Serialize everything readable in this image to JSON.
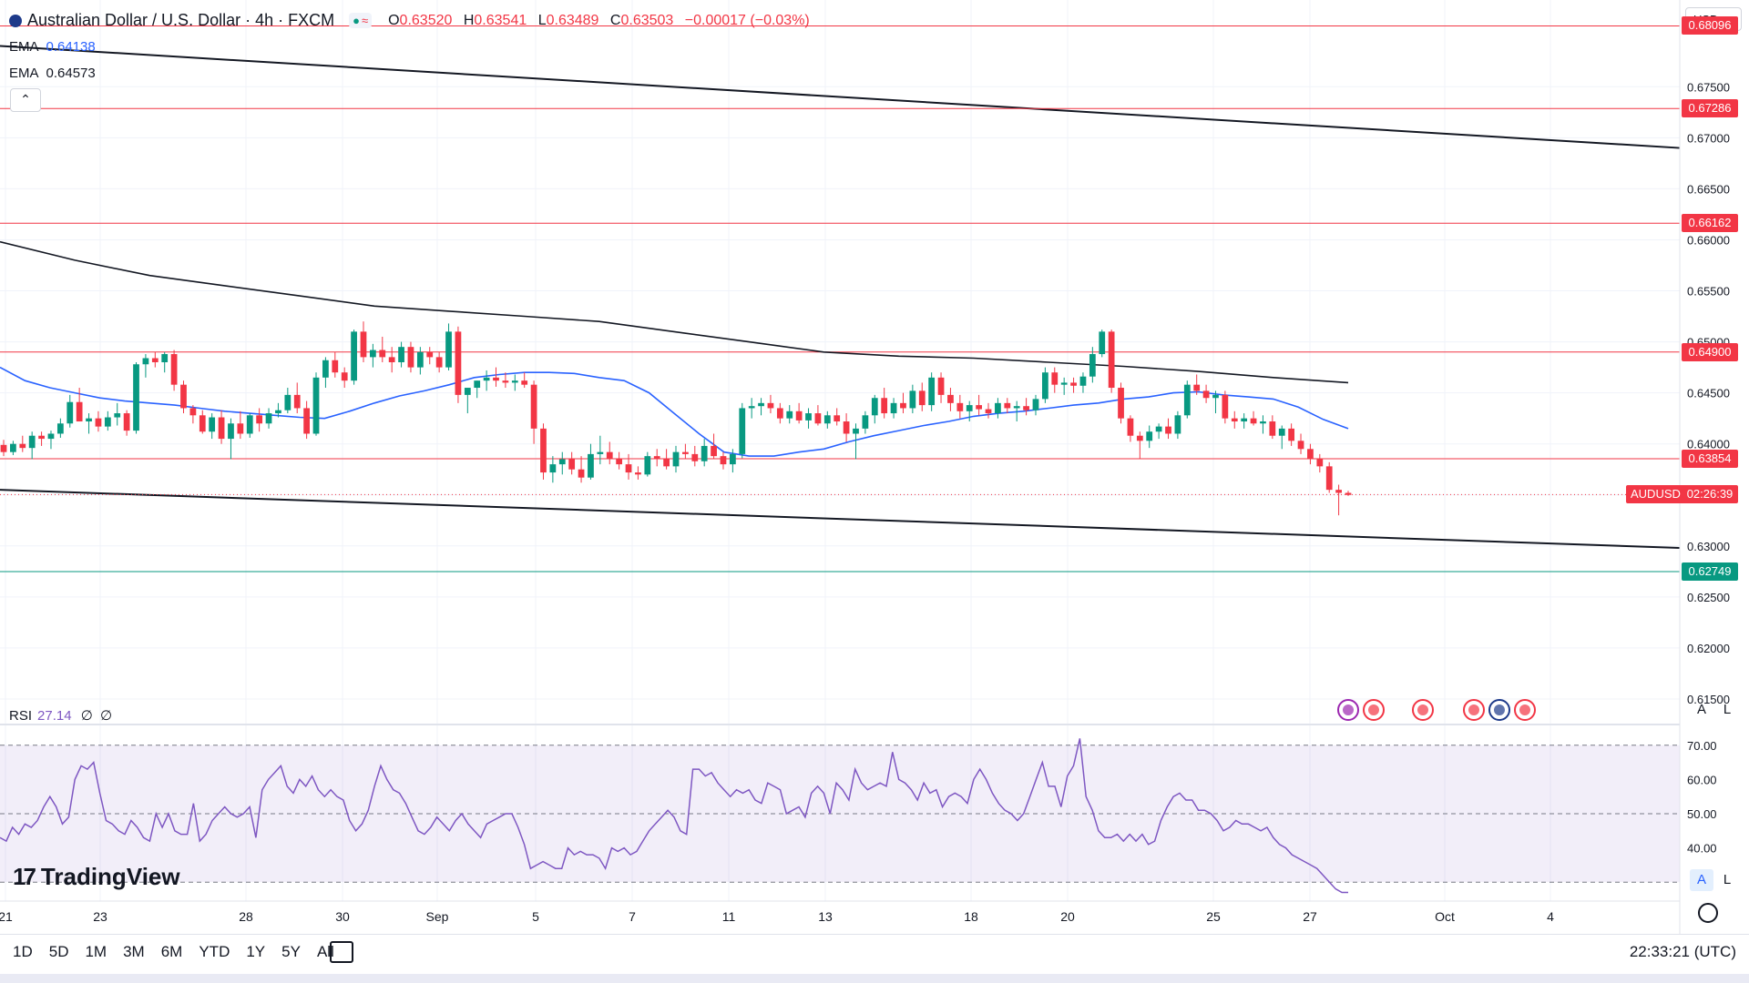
{
  "header": {
    "symbol_title": "Australian Dollar / U.S. Dollar · 4h · FXCM",
    "ohlc": {
      "o_label": "O",
      "o": "0.63520",
      "h_label": "H",
      "h": "0.63541",
      "l_label": "L",
      "l": "0.63489",
      "c_label": "C",
      "c": "0.63503",
      "change": "−0.00017 (−0.03%)"
    },
    "pill_icons": [
      "●",
      "≈"
    ],
    "collapse_icon": "⌃"
  },
  "indicators": {
    "ema1": {
      "label": "EMA",
      "value": "0.64138",
      "color": "#2962ff"
    },
    "ema2": {
      "label": "EMA",
      "value": "0.64573",
      "color": "#131722"
    }
  },
  "axis": {
    "currency": "USD",
    "currency_icon": "⌄",
    "price_ticks": [
      0.675,
      0.67,
      0.665,
      0.66,
      0.655,
      0.65,
      0.645,
      0.64,
      0.635,
      0.63,
      0.625,
      0.62,
      0.615
    ],
    "price_tick_labels": [
      "0.67500",
      "0.67000",
      "0.66500",
      "0.66000",
      "0.65500",
      "0.65000",
      "0.64500",
      "0.64000",
      "0.63500",
      "0.63000",
      "0.62500",
      "0.62000",
      "0.61500"
    ],
    "x_labels": [
      "21",
      "23",
      "28",
      "30",
      "Sep",
      "5",
      "7",
      "11",
      "13",
      "18",
      "20",
      "25",
      "27",
      "Oct",
      "4"
    ],
    "auto_label": "A",
    "log_label": "L"
  },
  "levels": [
    {
      "value": 0.68096,
      "label": "0.68096",
      "color": "#f23645"
    },
    {
      "value": 0.67286,
      "label": "0.67286",
      "color": "#f23645"
    },
    {
      "value": 0.66162,
      "label": "0.66162",
      "color": "#f23645"
    },
    {
      "value": 0.649,
      "label": "0.64900",
      "color": "#f23645"
    },
    {
      "value": 0.63854,
      "label": "0.63854",
      "color": "#f23645"
    },
    {
      "value": 0.62749,
      "label": "0.62749",
      "color": "#089981"
    }
  ],
  "current": {
    "symbol": "AUDUSD",
    "countdown": "02:26:39",
    "value": 0.63503,
    "color": "#f23645"
  },
  "rsi": {
    "label": "RSI",
    "value": "27.14",
    "extra1": "∅",
    "extra2": "∅",
    "ticks": [
      70,
      60,
      50,
      40
    ],
    "tick_labels": [
      "70.00",
      "60.00",
      "50.00",
      "40.00"
    ],
    "upper": 70,
    "lower": 30,
    "color": "#7e57c2"
  },
  "branding": {
    "logo_mark": "17",
    "logo_text": "TradingView"
  },
  "bottom": {
    "ranges": [
      "1D",
      "5D",
      "1M",
      "3M",
      "6M",
      "YTD",
      "1Y",
      "5Y",
      "All"
    ],
    "clock": "22:33:21 (UTC)"
  },
  "chart_data": {
    "type": "candlestick",
    "instrument": "AUDUSD",
    "timeframe": "4h",
    "ylim": [
      0.6125,
      0.6835
    ],
    "candles_ohlc": [
      [
        0.6399,
        0.6404,
        0.6388,
        0.6392
      ],
      [
        0.6392,
        0.6403,
        0.6389,
        0.64
      ],
      [
        0.64,
        0.6408,
        0.6392,
        0.6396
      ],
      [
        0.6396,
        0.6412,
        0.6385,
        0.6408
      ],
      [
        0.6408,
        0.6412,
        0.6398,
        0.6405
      ],
      [
        0.6405,
        0.6413,
        0.6395,
        0.641
      ],
      [
        0.641,
        0.6425,
        0.6406,
        0.642
      ],
      [
        0.642,
        0.6448,
        0.6416,
        0.6441
      ],
      [
        0.6441,
        0.6455,
        0.643,
        0.6422
      ],
      [
        0.6422,
        0.643,
        0.641,
        0.6425
      ],
      [
        0.6425,
        0.6432,
        0.6412,
        0.6417
      ],
      [
        0.6417,
        0.6432,
        0.6413,
        0.6426
      ],
      [
        0.6426,
        0.644,
        0.6418,
        0.643
      ],
      [
        0.643,
        0.6433,
        0.6408,
        0.6413
      ],
      [
        0.6413,
        0.648,
        0.641,
        0.6478
      ],
      [
        0.6478,
        0.6488,
        0.6465,
        0.6484
      ],
      [
        0.6484,
        0.649,
        0.6475,
        0.648
      ],
      [
        0.648,
        0.649,
        0.647,
        0.6488
      ],
      [
        0.6488,
        0.6492,
        0.6452,
        0.6458
      ],
      [
        0.6458,
        0.6462,
        0.643,
        0.6435
      ],
      [
        0.6435,
        0.6438,
        0.642,
        0.6428
      ],
      [
        0.6428,
        0.6433,
        0.641,
        0.6412
      ],
      [
        0.6412,
        0.643,
        0.6405,
        0.6426
      ],
      [
        0.6426,
        0.6433,
        0.64,
        0.6405
      ],
      [
        0.6405,
        0.6425,
        0.6385,
        0.642
      ],
      [
        0.642,
        0.6432,
        0.6405,
        0.641
      ],
      [
        0.641,
        0.643,
        0.6406,
        0.6428
      ],
      [
        0.6428,
        0.6435,
        0.6412,
        0.642
      ],
      [
        0.642,
        0.6435,
        0.6415,
        0.643
      ],
      [
        0.643,
        0.644,
        0.6426,
        0.6433
      ],
      [
        0.6433,
        0.6455,
        0.643,
        0.6448
      ],
      [
        0.6448,
        0.646,
        0.643,
        0.6435
      ],
      [
        0.6435,
        0.6442,
        0.6405,
        0.641
      ],
      [
        0.641,
        0.647,
        0.6408,
        0.6465
      ],
      [
        0.6465,
        0.6485,
        0.6455,
        0.6482
      ],
      [
        0.6482,
        0.649,
        0.6465,
        0.647
      ],
      [
        0.647,
        0.6475,
        0.6455,
        0.6462
      ],
      [
        0.6462,
        0.6512,
        0.6458,
        0.651
      ],
      [
        0.651,
        0.652,
        0.648,
        0.6485
      ],
      [
        0.6485,
        0.6498,
        0.6475,
        0.6492
      ],
      [
        0.6492,
        0.6505,
        0.648,
        0.6485
      ],
      [
        0.6485,
        0.6495,
        0.647,
        0.648
      ],
      [
        0.648,
        0.65,
        0.6475,
        0.6495
      ],
      [
        0.6495,
        0.65,
        0.647,
        0.6475
      ],
      [
        0.6475,
        0.6495,
        0.6468,
        0.649
      ],
      [
        0.649,
        0.6495,
        0.6478,
        0.6485
      ],
      [
        0.6485,
        0.649,
        0.647,
        0.6475
      ],
      [
        0.6475,
        0.6518,
        0.6472,
        0.651
      ],
      [
        0.651,
        0.6515,
        0.644,
        0.6448
      ],
      [
        0.6448,
        0.6455,
        0.643,
        0.6455
      ],
      [
        0.6455,
        0.6462,
        0.6445,
        0.6462
      ],
      [
        0.6462,
        0.6472,
        0.6452,
        0.6465
      ],
      [
        0.6465,
        0.6475,
        0.6456,
        0.6462
      ],
      [
        0.6462,
        0.647,
        0.6455,
        0.646
      ],
      [
        0.646,
        0.6468,
        0.6452,
        0.6462
      ],
      [
        0.6462,
        0.647,
        0.6455,
        0.6458
      ],
      [
        0.6458,
        0.6462,
        0.64,
        0.6415
      ],
      [
        0.6415,
        0.642,
        0.6365,
        0.6372
      ],
      [
        0.6372,
        0.6388,
        0.6362,
        0.638
      ],
      [
        0.638,
        0.6392,
        0.637,
        0.6385
      ],
      [
        0.6385,
        0.6392,
        0.637,
        0.6375
      ],
      [
        0.6375,
        0.6388,
        0.6362,
        0.6367
      ],
      [
        0.6367,
        0.64,
        0.6365,
        0.639
      ],
      [
        0.639,
        0.6408,
        0.638,
        0.6392
      ],
      [
        0.6392,
        0.6402,
        0.638,
        0.6385
      ],
      [
        0.6385,
        0.6392,
        0.6375,
        0.638
      ],
      [
        0.638,
        0.639,
        0.6365,
        0.6372
      ],
      [
        0.6372,
        0.6378,
        0.6365,
        0.637
      ],
      [
        0.637,
        0.6392,
        0.6368,
        0.6388
      ],
      [
        0.6388,
        0.6395,
        0.6378,
        0.6385
      ],
      [
        0.6385,
        0.6395,
        0.6375,
        0.6378
      ],
      [
        0.6378,
        0.6398,
        0.6372,
        0.6392
      ],
      [
        0.6392,
        0.64,
        0.6385,
        0.639
      ],
      [
        0.639,
        0.6398,
        0.6378,
        0.6383
      ],
      [
        0.6383,
        0.6405,
        0.6378,
        0.6398
      ],
      [
        0.6398,
        0.641,
        0.6385,
        0.6388
      ],
      [
        0.6388,
        0.6392,
        0.6375,
        0.638
      ],
      [
        0.638,
        0.6395,
        0.6372,
        0.639
      ],
      [
        0.639,
        0.644,
        0.6386,
        0.6435
      ],
      [
        0.6435,
        0.6445,
        0.6425,
        0.6437
      ],
      [
        0.6437,
        0.6445,
        0.6428,
        0.644
      ],
      [
        0.644,
        0.6448,
        0.643,
        0.6435
      ],
      [
        0.6435,
        0.644,
        0.642,
        0.6425
      ],
      [
        0.6425,
        0.6438,
        0.642,
        0.6432
      ],
      [
        0.6432,
        0.644,
        0.642,
        0.6423
      ],
      [
        0.6423,
        0.6435,
        0.6415,
        0.643
      ],
      [
        0.643,
        0.6438,
        0.6418,
        0.642
      ],
      [
        0.642,
        0.6432,
        0.6415,
        0.6428
      ],
      [
        0.6428,
        0.6435,
        0.6418,
        0.6422
      ],
      [
        0.6422,
        0.643,
        0.6402,
        0.641
      ],
      [
        0.641,
        0.642,
        0.6385,
        0.6415
      ],
      [
        0.6415,
        0.6432,
        0.641,
        0.6428
      ],
      [
        0.6428,
        0.6448,
        0.642,
        0.6445
      ],
      [
        0.6445,
        0.6455,
        0.6425,
        0.643
      ],
      [
        0.643,
        0.6445,
        0.6425,
        0.644
      ],
      [
        0.644,
        0.645,
        0.643,
        0.6435
      ],
      [
        0.6435,
        0.6458,
        0.643,
        0.6452
      ],
      [
        0.6452,
        0.646,
        0.6432,
        0.6438
      ],
      [
        0.6438,
        0.647,
        0.6432,
        0.6465
      ],
      [
        0.6465,
        0.647,
        0.644,
        0.6448
      ],
      [
        0.6448,
        0.6455,
        0.6432,
        0.644
      ],
      [
        0.644,
        0.6448,
        0.6425,
        0.6432
      ],
      [
        0.6432,
        0.6442,
        0.6422,
        0.6438
      ],
      [
        0.6438,
        0.6448,
        0.6428,
        0.6434
      ],
      [
        0.6434,
        0.644,
        0.6425,
        0.643
      ],
      [
        0.643,
        0.6445,
        0.6425,
        0.644
      ],
      [
        0.644,
        0.6445,
        0.643,
        0.6435
      ],
      [
        0.6435,
        0.6442,
        0.6422,
        0.6437
      ],
      [
        0.6437,
        0.6445,
        0.6428,
        0.6433
      ],
      [
        0.6433,
        0.6448,
        0.6428,
        0.6444
      ],
      [
        0.6444,
        0.6475,
        0.644,
        0.647
      ],
      [
        0.647,
        0.6475,
        0.645,
        0.6458
      ],
      [
        0.6458,
        0.6465,
        0.6448,
        0.646
      ],
      [
        0.646,
        0.6465,
        0.645,
        0.6457
      ],
      [
        0.6457,
        0.647,
        0.645,
        0.6466
      ],
      [
        0.6466,
        0.6495,
        0.646,
        0.6488
      ],
      [
        0.6488,
        0.6512,
        0.6485,
        0.651
      ],
      [
        0.651,
        0.6512,
        0.645,
        0.6455
      ],
      [
        0.6455,
        0.646,
        0.642,
        0.6425
      ],
      [
        0.6425,
        0.6428,
        0.6402,
        0.6408
      ],
      [
        0.6408,
        0.6412,
        0.6385,
        0.6403
      ],
      [
        0.6403,
        0.6418,
        0.6396,
        0.6412
      ],
      [
        0.6412,
        0.642,
        0.6405,
        0.6417
      ],
      [
        0.6417,
        0.6425,
        0.6405,
        0.641
      ],
      [
        0.641,
        0.6432,
        0.6405,
        0.6428
      ],
      [
        0.6428,
        0.6462,
        0.6425,
        0.6458
      ],
      [
        0.6458,
        0.6468,
        0.6448,
        0.6452
      ],
      [
        0.6452,
        0.6458,
        0.644,
        0.6445
      ],
      [
        0.6445,
        0.6452,
        0.643,
        0.6448
      ],
      [
        0.6448,
        0.6452,
        0.642,
        0.6425
      ],
      [
        0.6425,
        0.6432,
        0.6415,
        0.6422
      ],
      [
        0.6422,
        0.643,
        0.6415,
        0.6425
      ],
      [
        0.6425,
        0.6432,
        0.6418,
        0.642
      ],
      [
        0.642,
        0.6428,
        0.641,
        0.6422
      ],
      [
        0.6422,
        0.6428,
        0.6405,
        0.6408
      ],
      [
        0.6408,
        0.6418,
        0.6395,
        0.6415
      ],
      [
        0.6415,
        0.642,
        0.6398,
        0.6403
      ],
      [
        0.6403,
        0.641,
        0.639,
        0.6395
      ],
      [
        0.6395,
        0.64,
        0.638,
        0.6385
      ],
      [
        0.6385,
        0.639,
        0.6372,
        0.6378
      ],
      [
        0.6378,
        0.6382,
        0.6352,
        0.6355
      ],
      [
        0.6355,
        0.636,
        0.633,
        0.6352
      ],
      [
        0.6352,
        0.6354,
        0.6349,
        0.635
      ]
    ],
    "ema_fast": [
      0.6475,
      0.6462,
      0.6455,
      0.645,
      0.6445,
      0.6442,
      0.644,
      0.6438,
      0.6435,
      0.6432,
      0.643,
      0.6428,
      0.6426,
      0.6425,
      0.6432,
      0.644,
      0.6447,
      0.6452,
      0.6458,
      0.6465,
      0.6468,
      0.647,
      0.647,
      0.6469,
      0.6465,
      0.6462,
      0.645,
      0.643,
      0.641,
      0.6392,
      0.6388,
      0.6388,
      0.6392,
      0.6395,
      0.6402,
      0.6408,
      0.6413,
      0.6418,
      0.6422,
      0.6427,
      0.643,
      0.6432,
      0.6435,
      0.6438,
      0.644,
      0.6444,
      0.6446,
      0.645,
      0.6451,
      0.6448,
      0.6446,
      0.6444,
      0.6436,
      0.6424,
      0.6415
    ],
    "ema_slow": [
      0.6598,
      0.658,
      0.6565,
      0.6555,
      0.6545,
      0.6535,
      0.653,
      0.6525,
      0.652,
      0.651,
      0.65,
      0.649,
      0.6486,
      0.6484,
      0.648,
      0.6476,
      0.6471,
      0.6465,
      0.646
    ],
    "channel": {
      "upper": {
        "from": 0.679,
        "to": 0.669
      },
      "lower": {
        "from": 0.6355,
        "to": 0.6298
      }
    },
    "rsi_values": [
      43,
      42,
      46,
      44,
      47,
      46,
      48,
      52,
      55,
      52,
      47,
      49,
      60,
      64,
      63,
      65,
      56,
      48,
      47,
      45,
      44,
      48,
      46,
      43,
      42,
      50,
      46,
      50,
      45,
      44,
      44,
      53,
      42,
      44,
      48,
      50,
      52,
      50,
      49,
      50,
      52,
      43,
      57,
      60,
      62,
      64,
      58,
      56,
      60,
      58,
      61,
      57,
      55,
      57,
      55,
      54,
      48,
      45,
      47,
      51,
      58,
      64,
      60,
      57,
      56,
      53,
      49,
      45,
      44,
      46,
      49,
      47,
      45,
      48,
      50,
      47,
      45,
      43,
      47,
      48,
      49,
      50,
      50,
      46,
      41,
      34,
      35,
      36,
      35,
      34,
      34,
      40,
      38,
      39,
      38,
      38,
      37,
      34,
      40,
      39,
      40,
      38,
      39,
      42,
      45,
      47,
      49,
      51,
      49,
      45,
      44,
      63,
      63,
      61,
      62,
      59,
      57,
      55,
      57,
      56,
      57,
      54,
      53,
      59,
      58,
      57,
      50,
      51,
      52,
      49,
      56,
      58,
      56,
      50,
      59,
      57,
      54,
      63,
      59,
      57,
      58,
      59,
      58,
      68,
      60,
      59,
      57,
      54,
      59,
      56,
      57,
      52,
      55,
      56,
      55,
      53,
      60,
      63,
      60,
      56,
      53,
      51,
      50,
      48,
      50,
      55,
      60,
      65,
      58,
      58,
      52,
      61,
      64,
      72,
      55,
      51,
      45,
      43,
      43,
      44,
      42,
      44,
      42,
      44,
      41,
      42,
      48,
      52,
      55,
      56,
      54,
      54,
      51,
      51,
      50,
      48,
      45,
      46,
      48,
      47,
      47,
      46,
      45,
      46,
      43,
      41,
      40,
      38,
      37,
      36,
      35,
      34,
      32,
      30,
      28,
      27,
      27
    ]
  }
}
